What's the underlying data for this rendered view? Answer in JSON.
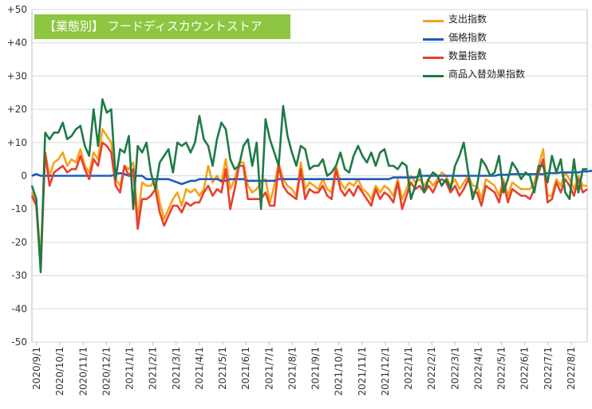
{
  "title": "【業態別】 フードディスカウントストア",
  "chart_data": {
    "type": "line",
    "ylim": [
      -50,
      50
    ],
    "yticks": [
      "+50",
      "+40",
      "+30",
      "+20",
      "+10",
      "0",
      "-10",
      "-20",
      "-30",
      "-40",
      "-50"
    ],
    "ytick_values": [
      50,
      40,
      30,
      20,
      10,
      0,
      -10,
      -20,
      -30,
      -40,
      -50
    ],
    "xtick_labels": [
      "2020/9/1",
      "2020/10/1",
      "2020/11/1",
      "2020/12/1",
      "2021/1/1",
      "2021/2/1",
      "2021/3/1",
      "2021/4/1",
      "2021/5/1",
      "2021/6/1",
      "2021/7/1",
      "2021/8/1",
      "2021/9/1",
      "2021/10/1",
      "2021/11/1",
      "2021/12/1",
      "2022/1/1",
      "2022/2/1",
      "2022/3/1",
      "2022/4/1",
      "2022/5/1",
      "2022/6/1",
      "2022/7/1",
      "2022/8/1"
    ],
    "grid": true,
    "legend_position": "top-right",
    "series": [
      {
        "name": "支出指数",
        "color": "#f7a21b",
        "values": [
          -5,
          -8,
          -25,
          7,
          0,
          4,
          5,
          7,
          3,
          5,
          4,
          8,
          3,
          1,
          7,
          5,
          14,
          12,
          10,
          -1,
          -3,
          3,
          2,
          4,
          -13,
          -2,
          -3,
          -3,
          -1,
          -8,
          -13,
          -10,
          -7,
          -5,
          -9,
          -4,
          -5,
          -4,
          -6,
          -4,
          3,
          -2,
          0,
          -2,
          5,
          -4,
          -1,
          4,
          4,
          -3,
          -5,
          -4,
          -2,
          -1,
          -8,
          -3,
          4,
          -1,
          -3,
          -4,
          -6,
          4,
          -4,
          -2,
          -3,
          -4,
          -1,
          -4,
          -5,
          3,
          -2,
          -4,
          -2,
          -3,
          -1,
          -4,
          -5,
          -7,
          -3,
          -5,
          -3,
          -4,
          -6,
          -1,
          -7,
          -4,
          0,
          -2,
          -1,
          -3,
          -1,
          -3,
          -1,
          1,
          0,
          -3,
          -1,
          -4,
          -2,
          0,
          -3,
          -3,
          -7,
          -1,
          -2,
          -3,
          -6,
          -1,
          -6,
          -2,
          -3,
          -4,
          -4,
          -4,
          -2,
          3,
          8,
          -6,
          -6,
          -1,
          -3,
          1,
          -1,
          -4,
          0,
          -3,
          -3
        ]
      },
      {
        "name": "価格指数",
        "color": "#1f5bbd",
        "values": [
          0,
          0.5,
          0,
          0,
          0,
          0,
          0,
          0,
          0,
          0,
          0,
          0,
          0,
          0,
          0,
          0,
          0,
          0,
          0,
          0.5,
          0.8,
          0.5,
          0,
          0,
          0,
          0,
          -1,
          -1,
          -1,
          -1,
          -1,
          -1,
          -1.5,
          -2,
          -2.5,
          -2,
          -1.5,
          -1.5,
          -1,
          -1,
          -1,
          -1,
          -1,
          -1.5,
          -1.5,
          -1,
          -1,
          -1,
          -1,
          -1.5,
          -1.5,
          -1.5,
          -1.5,
          -1.5,
          -1.5,
          -1.5,
          -1,
          -1,
          -1,
          -1,
          -1,
          -1,
          -1,
          -1,
          -1,
          -1,
          -1,
          -1,
          -1,
          -1,
          -1,
          -1,
          -1,
          -1,
          -1,
          -1,
          -1,
          -1,
          -1,
          -1,
          -1,
          -1,
          -0.5,
          -0.5,
          -0.5,
          -0.5,
          -0.5,
          -0.5,
          0,
          0,
          0,
          0,
          0,
          0,
          0,
          0,
          0,
          0,
          0,
          0,
          0,
          0,
          0,
          0,
          0,
          0,
          0.3,
          0.3,
          0.3,
          0.5,
          0.5,
          0.5,
          0.5,
          0.5,
          0.5,
          0.5,
          0.5,
          0.8,
          0.8,
          0.8,
          1,
          1,
          1,
          1,
          1,
          1.3,
          1.3,
          1.5,
          1.5,
          1.5
        ]
      },
      {
        "name": "数量指数",
        "color": "#e8402d",
        "values": [
          -6,
          -9,
          -28,
          7,
          -3,
          1,
          2,
          3,
          1,
          2,
          2,
          6,
          2,
          -1,
          5,
          3,
          10,
          9,
          7,
          -3,
          -5,
          3,
          0,
          2,
          -16,
          -7,
          -7,
          -6,
          -4,
          -11,
          -15,
          -12,
          -9,
          -9,
          -11,
          -8,
          -9,
          -8,
          -8,
          -5,
          -3,
          -6,
          -4,
          -5,
          2,
          -10,
          -4,
          3,
          3,
          -7,
          -7,
          -7,
          -7,
          -5,
          -9,
          -9,
          3,
          -3,
          -5,
          -6,
          -7,
          2,
          -7,
          -4,
          -5,
          -5,
          -3,
          -6,
          -7,
          2,
          -4,
          -6,
          -4,
          -6,
          -3,
          -5,
          -7,
          -9,
          -4,
          -7,
          -5,
          -6,
          -8,
          -2,
          -10,
          -6,
          -2,
          -4,
          -3,
          -5,
          -3,
          -5,
          -2,
          -1,
          -2,
          -5,
          -3,
          -6,
          -4,
          -1,
          -5,
          -5,
          -9,
          -3,
          -4,
          -5,
          -8,
          -2,
          -8,
          -4,
          -5,
          -6,
          -6,
          -7,
          -4,
          1,
          5,
          -8,
          -7,
          -2,
          -5,
          -1,
          -3,
          -6,
          -1,
          -5,
          -4
        ]
      },
      {
        "name": "商品入替効果指数",
        "color": "#1e7b45",
        "values": [
          -3,
          -7,
          -29,
          13,
          11,
          13,
          13,
          16,
          11,
          12,
          14,
          15,
          9,
          6,
          20,
          9,
          23,
          19,
          20,
          -1,
          8,
          7,
          12,
          -10,
          9,
          7,
          10,
          1,
          -4,
          4,
          6,
          8,
          1,
          10,
          9,
          10,
          7,
          10,
          18,
          11,
          9,
          3,
          11,
          16,
          14,
          5,
          2,
          3,
          9,
          11,
          3,
          10,
          -10,
          17,
          11,
          7,
          3,
          21,
          12,
          7,
          3,
          9,
          8,
          2,
          3,
          3,
          5,
          0,
          1,
          3,
          7,
          2,
          1,
          6,
          9,
          6,
          4,
          7,
          3,
          7,
          8,
          3,
          3,
          2,
          4,
          3,
          -7,
          -3,
          2,
          -5,
          -1,
          1,
          0,
          -3,
          -1,
          -4,
          3,
          6,
          10,
          1,
          -7,
          -3,
          5,
          3,
          0,
          1,
          6,
          -5,
          -1,
          4,
          2,
          -1,
          1,
          0,
          -5,
          3,
          3,
          -2,
          6,
          1,
          5,
          -5,
          -7,
          5,
          -5,
          2,
          2
        ]
      }
    ]
  }
}
